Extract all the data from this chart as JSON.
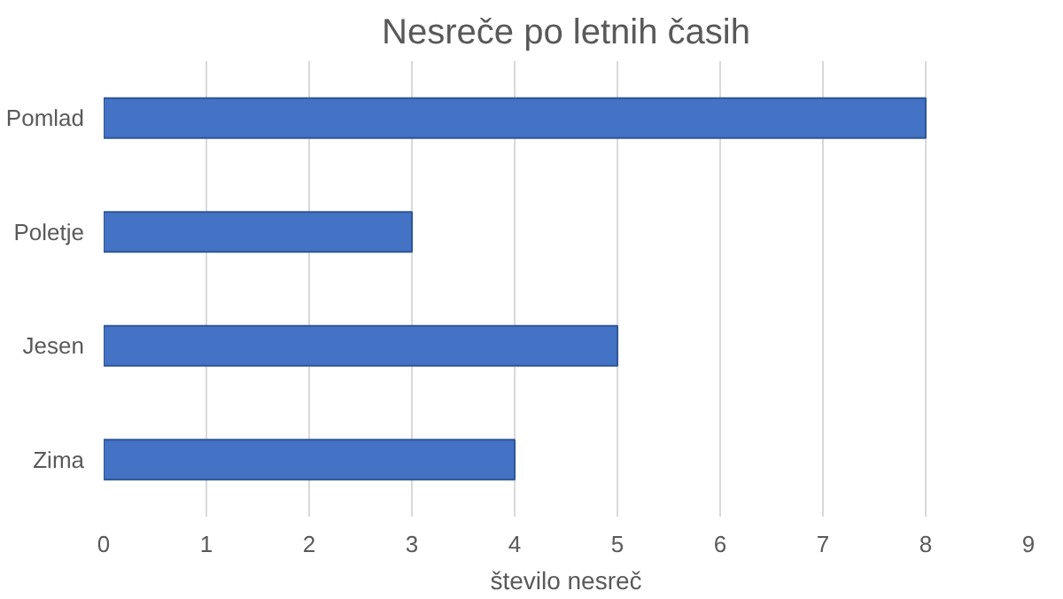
{
  "chart_data": {
    "type": "bar",
    "orientation": "horizontal",
    "title": "Nesreče po letnih časih",
    "xlabel": "število nesreč",
    "categories": [
      "Pomlad",
      "Poletje",
      "Jesen",
      "Zima"
    ],
    "values": [
      8,
      3,
      5,
      4
    ],
    "color": "#4472c4",
    "xlim": [
      0,
      9
    ],
    "xticks": [
      0,
      1,
      2,
      3,
      4,
      5,
      6,
      7,
      8,
      9
    ],
    "grid": "x"
  }
}
